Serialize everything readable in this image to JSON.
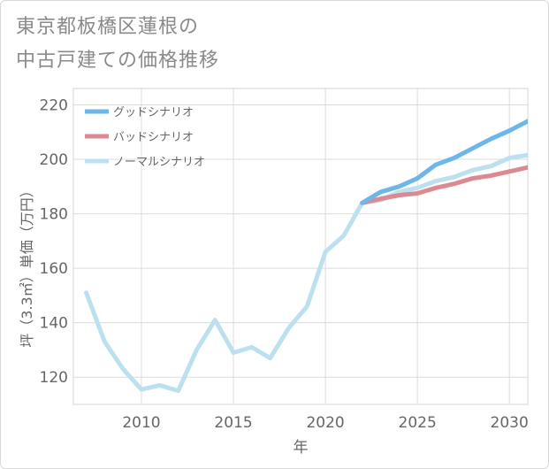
{
  "title": {
    "line1": "東京都板橋区蓮根の",
    "line2": "中古戸建ての価格推移"
  },
  "chart_data": {
    "type": "line",
    "xlabel": "年",
    "ylabel": "坪（3.3㎡）単価（万円）",
    "xlim": [
      2006.3,
      2031
    ],
    "ylim": [
      110,
      226
    ],
    "xticks": [
      2010,
      2015,
      2020,
      2025,
      2030
    ],
    "yticks": [
      120,
      140,
      160,
      180,
      200,
      220
    ],
    "grid": true,
    "legend_position": "top-left",
    "series": [
      {
        "name": "グッドシナリオ",
        "color": "#6cb6ea",
        "x": [
          2022,
          2023,
          2024,
          2025,
          2026,
          2027,
          2028,
          2029,
          2030,
          2031
        ],
        "y": [
          184,
          188,
          190,
          193,
          198,
          200.5,
          204,
          207.5,
          210.5,
          214
        ]
      },
      {
        "name": "バッドシナリオ",
        "color": "#dc8a92",
        "x": [
          2022,
          2023,
          2024,
          2025,
          2026,
          2027,
          2028,
          2029,
          2030,
          2031
        ],
        "y": [
          184,
          185.5,
          186.8,
          187.5,
          189.5,
          191,
          193,
          194,
          195.5,
          197
        ]
      },
      {
        "name": "ノーマルシナリオ",
        "color": "#bde0ef",
        "x": [
          2007,
          2008,
          2009,
          2010,
          2011,
          2012,
          2013,
          2014,
          2015,
          2016,
          2017,
          2018,
          2019,
          2020,
          2021,
          2022,
          2023,
          2024,
          2025,
          2026,
          2027,
          2028,
          2029,
          2030,
          2031
        ],
        "y": [
          151,
          133,
          123,
          115.5,
          117,
          115,
          130,
          141,
          129,
          131,
          127,
          138,
          146,
          166,
          172,
          184,
          185,
          188,
          189.5,
          192,
          193.5,
          196,
          197.5,
          200.5,
          201.5
        ]
      }
    ]
  }
}
